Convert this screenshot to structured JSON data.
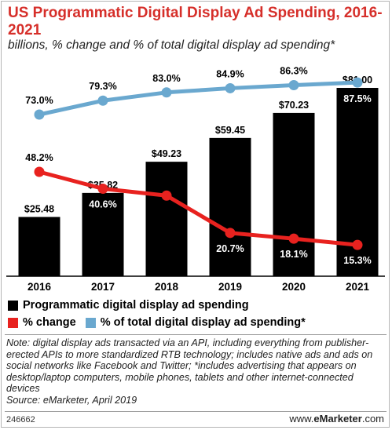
{
  "title": "US Programmatic Digital Display Ad Spending, 2016-2021",
  "subtitle": "billions, % change and % of total digital display ad spending*",
  "chart_data": {
    "type": "bar",
    "categories": [
      "2016",
      "2017",
      "2018",
      "2019",
      "2020",
      "2021"
    ],
    "series": [
      {
        "name": "Programmatic digital display ad spending",
        "type": "bar",
        "color": "#000000",
        "values": [
          25.48,
          35.82,
          49.23,
          59.45,
          70.23,
          81.0
        ],
        "labels": [
          "$25.48",
          "$35.82",
          "$49.23",
          "$59.45",
          "$70.23",
          "$81.00"
        ]
      },
      {
        "name": "% change",
        "type": "line",
        "color": "#e8221f",
        "values": [
          48.2,
          40.6,
          37.5,
          20.7,
          18.1,
          15.3
        ],
        "labels": [
          "48.2%",
          "40.6%",
          "37.5%",
          "20.7%",
          "18.1%",
          "15.3%"
        ]
      },
      {
        "name": "% of total digital display ad spending*",
        "type": "line",
        "color": "#6aa8cf",
        "values": [
          73.0,
          79.3,
          83.0,
          84.9,
          86.3,
          87.5
        ],
        "labels": [
          "73.0%",
          "79.3%",
          "83.0%",
          "84.9%",
          "86.3%",
          "87.5%"
        ]
      }
    ],
    "ylim": [
      0,
      100
    ],
    "grid": false,
    "legend_position": "bottom-left"
  },
  "legend": {
    "bar": "Programmatic digital display ad spending",
    "change": "% change",
    "share": "% of total digital display ad spending*"
  },
  "note": "Note: digital display ads transacted via an API, including everything from publisher-erected APIs to more standardized RTB technology; includes native ads and ads on social networks like Facebook and Twitter; *includes advertising that appears on desktop/laptop computers, mobile phones, tablets and other internet-connected devices",
  "source": "Source: eMarketer, April 2019",
  "footer": {
    "chart_id": "246662",
    "site_prefix": "www.",
    "site_brand": "eMarketer",
    "site_suffix": ".com"
  }
}
